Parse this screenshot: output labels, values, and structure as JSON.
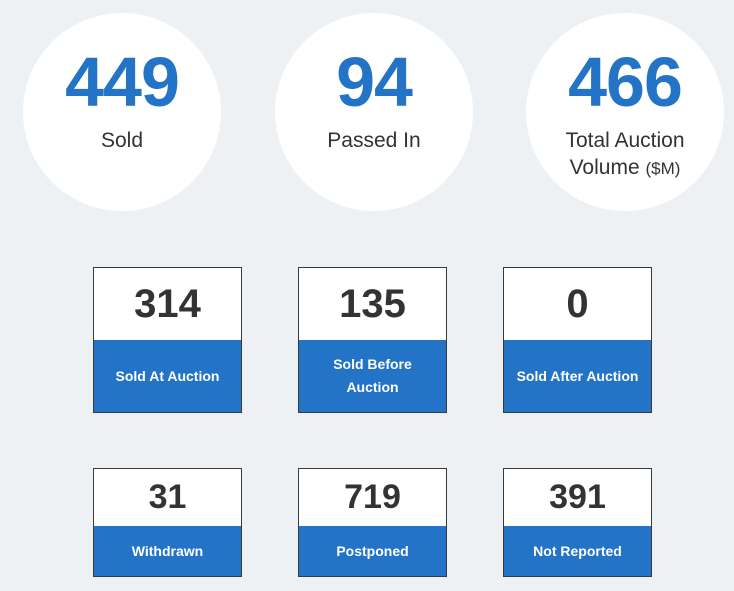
{
  "summary": [
    {
      "value": "449",
      "label": "Sold",
      "unit": ""
    },
    {
      "value": "94",
      "label": "Passed In",
      "unit": ""
    },
    {
      "value": "466",
      "label_line1": "Total Auction",
      "label_line2": "Volume",
      "unit": "($M)"
    }
  ],
  "cards_row1": [
    {
      "value": "314",
      "label": "Sold At Auction"
    },
    {
      "value": "135",
      "label_line1": "Sold Before",
      "label_line2": "Auction"
    },
    {
      "value": "0",
      "label": "Sold After Auction"
    }
  ],
  "cards_row2": [
    {
      "value": "31",
      "label": "Withdrawn"
    },
    {
      "value": "719",
      "label": "Postponed"
    },
    {
      "value": "391",
      "label": "Not Reported"
    }
  ],
  "colors": {
    "accent": "#2374c6",
    "background": "#edf1f4",
    "text": "#333333"
  }
}
